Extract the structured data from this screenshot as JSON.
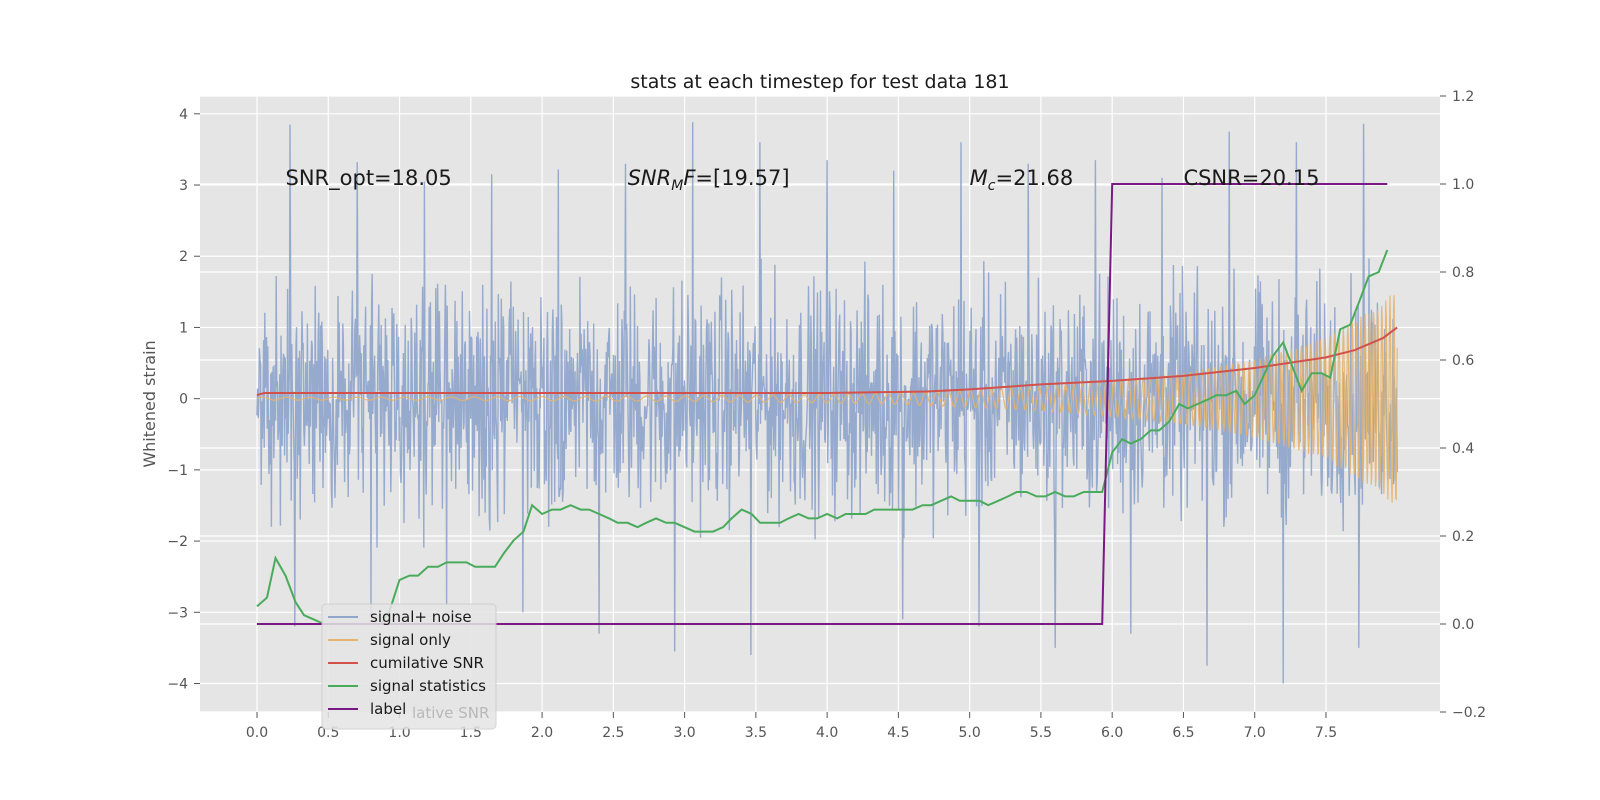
{
  "chart_data": {
    "type": "line",
    "title": "stats at each timestep for test data 181",
    "ylabel": "Whitened strain",
    "xlim": [
      -0.4,
      8.3
    ],
    "ylim": [
      -4.4,
      4.25
    ],
    "y2lim": [
      -0.2,
      1.2
    ],
    "xticks": [
      0.0,
      0.5,
      1.0,
      1.5,
      2.0,
      2.5,
      3.0,
      3.5,
      4.0,
      4.5,
      5.0,
      5.5,
      6.0,
      6.5,
      7.0,
      7.5
    ],
    "xtick_labels": [
      "0.0",
      "0.5",
      "1.0",
      "1.5",
      "2.0",
      "2.5",
      "3.0",
      "3.5",
      "4.0",
      "4.5",
      "5.0",
      "5.5",
      "6.0",
      "6.5",
      "7.0",
      "7.5"
    ],
    "yticks": [
      -4,
      -3,
      -2,
      -1,
      0,
      1,
      2,
      3,
      4
    ],
    "ytick_labels": [
      "−4",
      "−3",
      "−2",
      "−1",
      "0",
      "1",
      "2",
      "3",
      "4"
    ],
    "y2ticks": [
      -0.2,
      0.0,
      0.2,
      0.4,
      0.6,
      0.8,
      1.0,
      1.2
    ],
    "y2tick_labels": [
      "−0.2",
      "0.0",
      "0.2",
      "0.4",
      "0.6",
      "0.8",
      "1.0",
      "1.2"
    ],
    "annotations": [
      {
        "id": "snr-opt",
        "text": "SNR_opt=18.05",
        "x": 0.2,
        "y": 3.1
      },
      {
        "id": "snr-mf",
        "text": "=[19.57]",
        "prefix_main": "SNR",
        "prefix_sub": "M",
        "prefix_tail": "F",
        "x": 2.6,
        "y": 3.1
      },
      {
        "id": "mc",
        "text": "=21.68",
        "prefix_main": "M",
        "prefix_sub": "c",
        "x": 5.0,
        "y": 3.1
      },
      {
        "id": "csnr",
        "text": "CSNR=20.15",
        "x": 6.5,
        "y": 3.1
      }
    ],
    "legend_position": "lower-left",
    "series": [
      {
        "name": "signal+ noise",
        "color": "#91a6cb",
        "axis": "left",
        "kind": "noise",
        "x_range": [
          0.0,
          8.0
        ],
        "typical_amplitude": 1.0,
        "max_values": [
          3.85,
          3.32,
          3.05,
          3.15,
          3.22,
          3.3,
          3.88,
          3.6,
          3.35,
          3.2,
          3.6,
          3.3,
          3.35,
          3.1,
          3.75,
          3.6,
          3.86
        ],
        "min_values": [
          -3.2,
          -3.05,
          -2.9,
          -3.0,
          -3.3,
          -3.55,
          -3.6,
          -3.1,
          -3.2,
          -3.5,
          -3.3,
          -3.75,
          -4.0,
          -3.5,
          -3.35
        ]
      },
      {
        "name": "signal only",
        "color": "#e6b36a",
        "axis": "left",
        "kind": "chirp",
        "x": [
          0.0,
          1.0,
          2.0,
          3.0,
          4.0,
          4.5,
          5.0,
          5.5,
          6.0,
          6.5,
          7.0,
          7.5,
          7.9,
          8.0
        ],
        "envelope": [
          0.02,
          0.02,
          0.03,
          0.04,
          0.06,
          0.08,
          0.12,
          0.17,
          0.25,
          0.36,
          0.55,
          0.85,
          1.35,
          1.55
        ]
      },
      {
        "name": "cumilative SNR",
        "color": "#d2514a",
        "axis": "left",
        "x": [
          0.0,
          0.05,
          1.0,
          2.0,
          3.0,
          4.0,
          4.7,
          5.0,
          5.5,
          6.0,
          6.5,
          7.0,
          7.5,
          7.7,
          7.9,
          8.0
        ],
        "values": [
          0.05,
          0.08,
          0.08,
          0.08,
          0.08,
          0.08,
          0.1,
          0.13,
          0.2,
          0.25,
          0.32,
          0.43,
          0.58,
          0.68,
          0.85,
          1.0
        ]
      },
      {
        "name": "signal statistics",
        "color": "#4aab5c",
        "axis": "right",
        "x": [
          0.0,
          0.07,
          0.13,
          0.2,
          0.27,
          0.33,
          0.4,
          0.47,
          0.53,
          0.6,
          0.67,
          0.73,
          0.8,
          0.87,
          0.93,
          1.0,
          1.07,
          1.13,
          1.2,
          1.27,
          1.33,
          1.4,
          1.47,
          1.53,
          1.6,
          1.67,
          1.73,
          1.8,
          1.87,
          1.93,
          2.0,
          2.07,
          2.13,
          2.2,
          2.27,
          2.33,
          2.4,
          2.47,
          2.53,
          2.6,
          2.67,
          2.73,
          2.8,
          2.87,
          2.93,
          3.0,
          3.07,
          3.13,
          3.2,
          3.27,
          3.33,
          3.4,
          3.47,
          3.53,
          3.6,
          3.67,
          3.73,
          3.8,
          3.87,
          3.93,
          4.0,
          4.07,
          4.13,
          4.2,
          4.27,
          4.33,
          4.4,
          4.47,
          4.53,
          4.6,
          4.67,
          4.73,
          4.8,
          4.87,
          4.93,
          5.0,
          5.07,
          5.13,
          5.2,
          5.27,
          5.33,
          5.4,
          5.47,
          5.53,
          5.6,
          5.67,
          5.73,
          5.8,
          5.87,
          5.93,
          6.0,
          6.07,
          6.13,
          6.2,
          6.27,
          6.33,
          6.4,
          6.47,
          6.53,
          6.6,
          6.67,
          6.73,
          6.8,
          6.87,
          6.93,
          7.0,
          7.07,
          7.13,
          7.2,
          7.27,
          7.33,
          7.4,
          7.47,
          7.53,
          7.6,
          7.67,
          7.73,
          7.8,
          7.87,
          7.93
        ],
        "values": [
          0.04,
          0.06,
          0.15,
          0.11,
          0.05,
          0.02,
          0.01,
          0.0,
          0.0,
          0.0,
          0.0,
          0.0,
          0.0,
          0.0,
          0.03,
          0.1,
          0.11,
          0.11,
          0.13,
          0.13,
          0.14,
          0.14,
          0.14,
          0.13,
          0.13,
          0.13,
          0.16,
          0.19,
          0.21,
          0.27,
          0.25,
          0.26,
          0.26,
          0.27,
          0.26,
          0.26,
          0.25,
          0.24,
          0.23,
          0.23,
          0.22,
          0.23,
          0.24,
          0.23,
          0.23,
          0.22,
          0.21,
          0.21,
          0.21,
          0.22,
          0.24,
          0.26,
          0.25,
          0.23,
          0.23,
          0.23,
          0.24,
          0.25,
          0.24,
          0.24,
          0.25,
          0.24,
          0.25,
          0.25,
          0.25,
          0.26,
          0.26,
          0.26,
          0.26,
          0.26,
          0.27,
          0.27,
          0.28,
          0.29,
          0.28,
          0.28,
          0.28,
          0.27,
          0.28,
          0.29,
          0.3,
          0.3,
          0.29,
          0.29,
          0.3,
          0.29,
          0.29,
          0.3,
          0.3,
          0.3,
          0.39,
          0.42,
          0.41,
          0.42,
          0.44,
          0.44,
          0.46,
          0.5,
          0.49,
          0.5,
          0.51,
          0.52,
          0.52,
          0.53,
          0.5,
          0.52,
          0.57,
          0.61,
          0.64,
          0.58,
          0.53,
          0.57,
          0.57,
          0.56,
          0.67,
          0.68,
          0.73,
          0.79,
          0.8,
          0.85
        ]
      },
      {
        "name": "label",
        "color": "#7b1883",
        "axis": "right",
        "x": [
          0.0,
          5.93,
          6.0,
          7.93
        ],
        "values": [
          0.0,
          0.0,
          1.0,
          1.0
        ]
      }
    ],
    "legend_hidden_text": "lative SNR"
  }
}
